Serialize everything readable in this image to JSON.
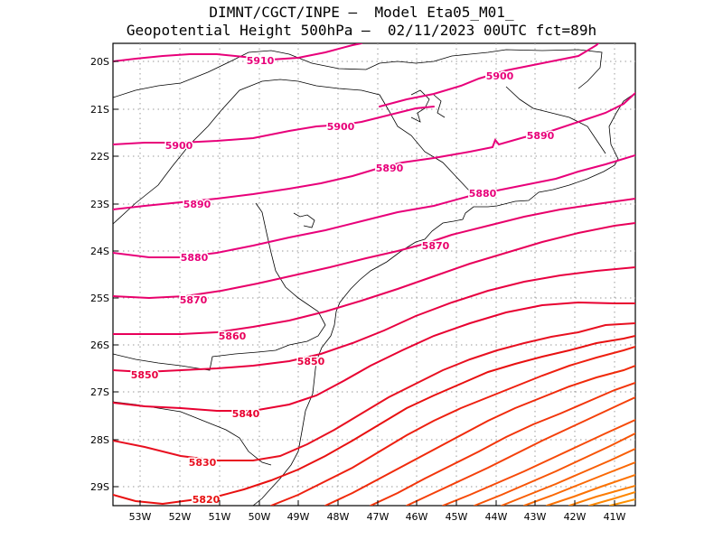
{
  "header": {
    "line1": "DIMNT/CGCT/INPE —  Model Eta05_M01_",
    "line2": "Geopotential Height 500hPa —  02/11/2023 00UTC fct=89h"
  },
  "axes": {
    "lat_labels": [
      "20S",
      "21S",
      "22S",
      "23S",
      "24S",
      "25S",
      "26S",
      "27S",
      "28S",
      "29S"
    ],
    "lon_labels": [
      "53W",
      "52W",
      "51W",
      "50W",
      "49W",
      "48W",
      "47W",
      "46W",
      "45W",
      "44W",
      "43W",
      "42W",
      "41W"
    ]
  },
  "contour_labels": [
    {
      "text": "5910",
      "color": "#e8007a"
    },
    {
      "text": "5900",
      "color": "#e8007a"
    },
    {
      "text": "5900",
      "color": "#e8007a"
    },
    {
      "text": "5900",
      "color": "#e8007a"
    },
    {
      "text": "5890",
      "color": "#e8007a"
    },
    {
      "text": "5890",
      "color": "#e8007a"
    },
    {
      "text": "5890",
      "color": "#e8007a"
    },
    {
      "text": "5880",
      "color": "#e8007a"
    },
    {
      "text": "5880",
      "color": "#e8007a"
    },
    {
      "text": "5870",
      "color": "#e8006a"
    },
    {
      "text": "5870",
      "color": "#e8006a"
    },
    {
      "text": "5860",
      "color": "#e8005a"
    },
    {
      "text": "5850",
      "color": "#e80040"
    },
    {
      "text": "5850",
      "color": "#e80040"
    },
    {
      "text": "5840",
      "color": "#e80030"
    },
    {
      "text": "5830",
      "color": "#e81020"
    },
    {
      "text": "5820",
      "color": "#e81010"
    }
  ],
  "colors": {
    "contour_high": "#e8007a",
    "contour_mid": "#e8102a",
    "contour_low": "#ff6a00",
    "coast": "#000000",
    "grid": "#9a9a9a"
  }
}
